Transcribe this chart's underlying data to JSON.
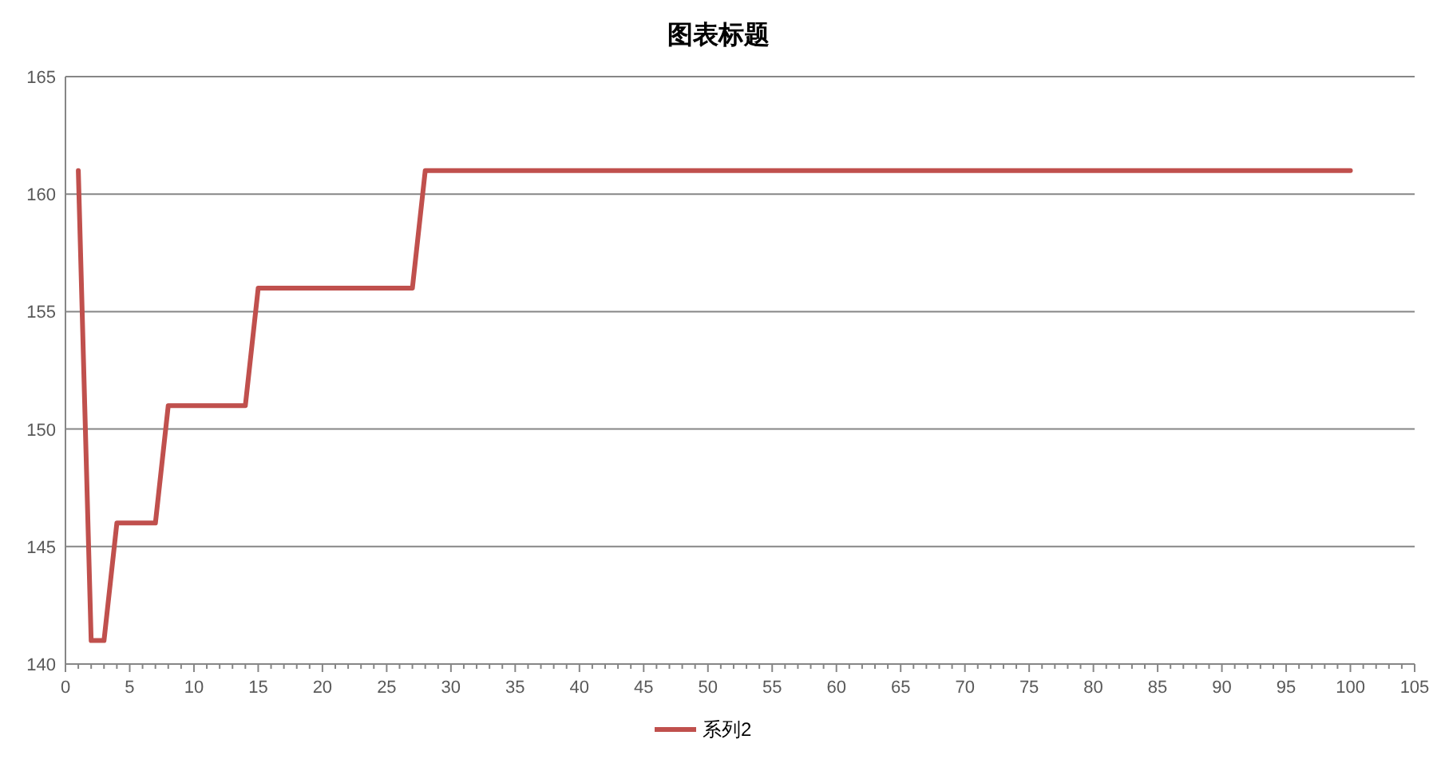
{
  "chart_data": {
    "type": "line",
    "title": "图表标题",
    "xlim": [
      0,
      105
    ],
    "xticks": [
      0,
      {
        "value": 1,
        "label": null
      },
      {
        "value": 2,
        "label": null
      },
      {
        "value": 3,
        "label": null
      },
      {
        "value": 4,
        "label": null
      },
      5,
      {
        "value": 6,
        "label": null
      },
      {
        "value": 7,
        "label": null
      },
      {
        "value": 8,
        "label": null
      },
      {
        "value": 9,
        "label": null
      },
      10,
      {
        "value": 11,
        "label": null
      },
      {
        "value": 12,
        "label": null
      },
      {
        "value": 13,
        "label": null
      },
      {
        "value": 14,
        "label": null
      },
      15,
      {
        "value": 16,
        "label": null
      },
      {
        "value": 17,
        "label": null
      },
      {
        "value": 18,
        "label": null
      },
      {
        "value": 19,
        "label": null
      },
      20,
      {
        "value": 21,
        "label": null
      },
      {
        "value": 22,
        "label": null
      },
      {
        "value": 23,
        "label": null
      },
      {
        "value": 24,
        "label": null
      },
      25,
      {
        "value": 26,
        "label": null
      },
      {
        "value": 27,
        "label": null
      },
      {
        "value": 28,
        "label": null
      },
      {
        "value": 29,
        "label": null
      },
      30,
      {
        "value": 31,
        "label": null
      },
      {
        "value": 32,
        "label": null
      },
      {
        "value": 33,
        "label": null
      },
      {
        "value": 34,
        "label": null
      },
      35,
      {
        "value": 36,
        "label": null
      },
      {
        "value": 37,
        "label": null
      },
      {
        "value": 38,
        "label": null
      },
      {
        "value": 39,
        "label": null
      },
      40,
      {
        "value": 41,
        "label": null
      },
      {
        "value": 42,
        "label": null
      },
      {
        "value": 43,
        "label": null
      },
      {
        "value": 44,
        "label": null
      },
      45,
      {
        "value": 46,
        "label": null
      },
      {
        "value": 47,
        "label": null
      },
      {
        "value": 48,
        "label": null
      },
      {
        "value": 49,
        "label": null
      },
      50,
      {
        "value": 51,
        "label": null
      },
      {
        "value": 52,
        "label": null
      },
      {
        "value": 53,
        "label": null
      },
      {
        "value": 54,
        "label": null
      },
      55,
      {
        "value": 56,
        "label": null
      },
      {
        "value": 57,
        "label": null
      },
      {
        "value": 58,
        "label": null
      },
      {
        "value": 59,
        "label": null
      },
      60,
      {
        "value": 61,
        "label": null
      },
      {
        "value": 62,
        "label": null
      },
      {
        "value": 63,
        "label": null
      },
      {
        "value": 64,
        "label": null
      },
      65,
      {
        "value": 66,
        "label": null
      },
      {
        "value": 67,
        "label": null
      },
      {
        "value": 68,
        "label": null
      },
      {
        "value": 69,
        "label": null
      },
      70,
      {
        "value": 71,
        "label": null
      },
      {
        "value": 72,
        "label": null
      },
      {
        "value": 73,
        "label": null
      },
      {
        "value": 74,
        "label": null
      },
      75,
      {
        "value": 76,
        "label": null
      },
      {
        "value": 77,
        "label": null
      },
      {
        "value": 78,
        "label": null
      },
      {
        "value": 79,
        "label": null
      },
      80,
      {
        "value": 81,
        "label": null
      },
      {
        "value": 82,
        "label": null
      },
      {
        "value": 83,
        "label": null
      },
      {
        "value": 84,
        "label": null
      },
      85,
      {
        "value": 86,
        "label": null
      },
      {
        "value": 87,
        "label": null
      },
      {
        "value": 88,
        "label": null
      },
      {
        "value": 89,
        "label": null
      },
      90,
      {
        "value": 91,
        "label": null
      },
      {
        "value": 92,
        "label": null
      },
      {
        "value": 93,
        "label": null
      },
      {
        "value": 94,
        "label": null
      },
      95,
      {
        "value": 96,
        "label": null
      },
      {
        "value": 97,
        "label": null
      },
      {
        "value": 98,
        "label": null
      },
      {
        "value": 99,
        "label": null
      },
      100,
      {
        "value": 101,
        "label": null
      },
      {
        "value": 102,
        "label": null
      },
      {
        "value": 103,
        "label": null
      },
      {
        "value": 104,
        "label": null
      },
      105
    ],
    "ylim": [
      140,
      165
    ],
    "yticks": [
      140,
      145,
      150,
      155,
      160,
      165
    ],
    "grid": "y",
    "legend": "bottom",
    "marker": "none",
    "line_style": "solid",
    "series": [
      {
        "name": "系列2",
        "color": "#c0504d",
        "x": [
          1,
          2,
          3,
          4,
          7,
          8,
          14,
          15,
          27,
          28,
          100
        ],
        "values": [
          161,
          141,
          141,
          146,
          146,
          151,
          151,
          156,
          156,
          161,
          161
        ]
      }
    ]
  }
}
